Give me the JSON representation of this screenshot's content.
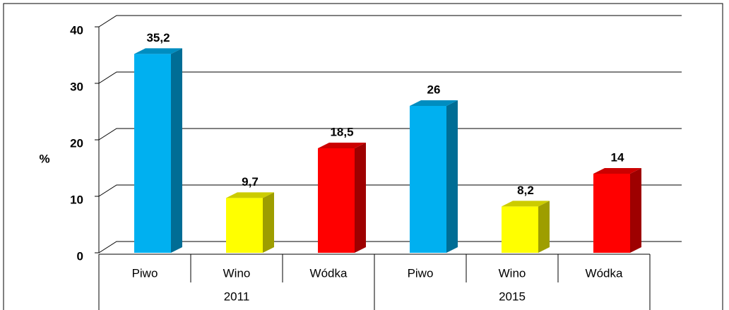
{
  "chart_data": {
    "type": "bar3d",
    "ylabel": "%",
    "ylim": [
      0,
      40
    ],
    "yticks": [
      0,
      10,
      20,
      30,
      40
    ],
    "grid": true,
    "colors": [
      "#00b0f0",
      "#ffff00",
      "#ff0000"
    ],
    "groups": [
      {
        "label": "2011",
        "categories": [
          "Piwo",
          "Wino",
          "Wódka"
        ],
        "values": [
          35.2,
          9.7,
          18.5
        ],
        "value_labels": [
          "35,2",
          "9,7",
          "18,5"
        ]
      },
      {
        "label": "2015",
        "categories": [
          "Piwo",
          "Wino",
          "Wódka"
        ],
        "values": [
          26,
          8.2,
          14
        ],
        "value_labels": [
          "26",
          "8,2",
          "14"
        ]
      }
    ]
  }
}
